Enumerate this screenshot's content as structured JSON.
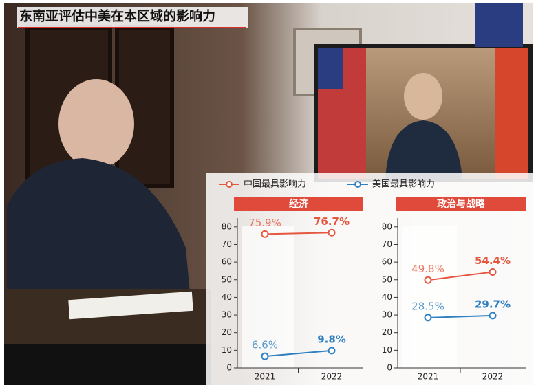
{
  "title": "东南亚评估中美在本区域的影响力",
  "legend": [
    {
      "name": "中国最具影响力",
      "color": "#e5573f"
    },
    {
      "name": "美国最具影响力",
      "color": "#2f7fc1"
    }
  ],
  "chart_data": [
    {
      "type": "line",
      "title": "经济",
      "categories": [
        "2021",
        "2022"
      ],
      "ylim": [
        0,
        85
      ],
      "yticks": [
        0,
        10,
        20,
        30,
        40,
        50,
        60,
        70,
        80
      ],
      "series": [
        {
          "color": "#e5573f",
          "values": [
            75.9,
            76.7
          ],
          "value_labels": [
            "75.9%",
            "76.7%"
          ]
        },
        {
          "color": "#2f7fc1",
          "values": [
            6.6,
            9.8
          ],
          "value_labels": [
            "6.6%",
            "9.8%"
          ]
        }
      ]
    },
    {
      "type": "line",
      "title": "政治与战略",
      "categories": [
        "2021",
        "2022"
      ],
      "ylim": [
        0,
        85
      ],
      "yticks": [
        0,
        10,
        20,
        30,
        40,
        50,
        60,
        70,
        80
      ],
      "series": [
        {
          "color": "#e5573f",
          "values": [
            49.8,
            54.4
          ],
          "value_labels": [
            "49.8%",
            "54.4%"
          ]
        },
        {
          "color": "#2f7fc1",
          "values": [
            28.5,
            29.7
          ],
          "value_labels": [
            "28.5%",
            "29.7%"
          ]
        }
      ]
    }
  ]
}
